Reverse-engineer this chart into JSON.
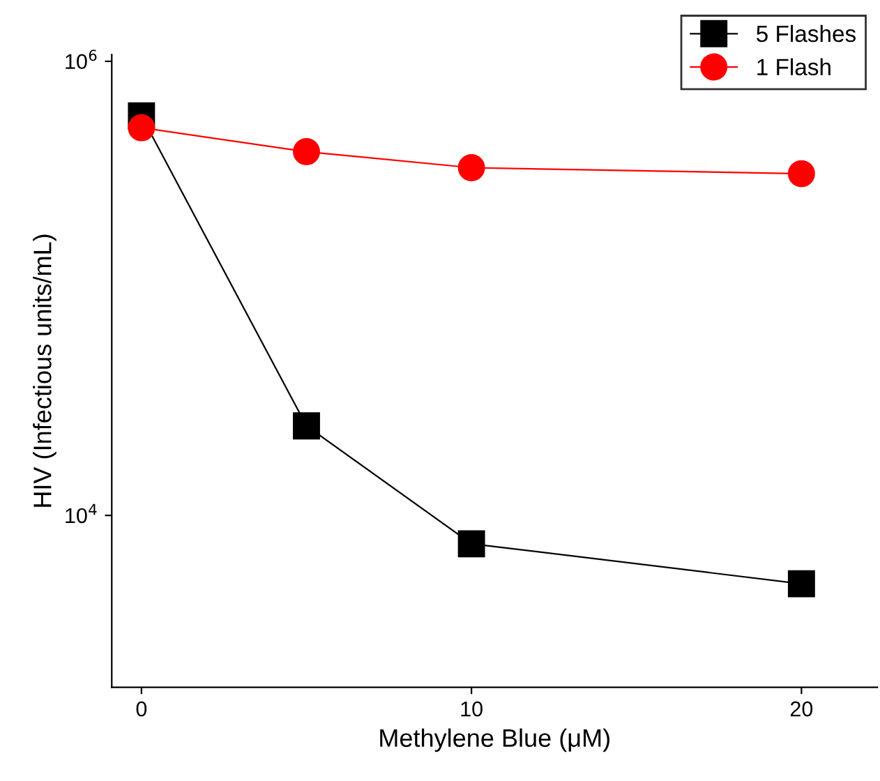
{
  "chart_data": {
    "type": "line",
    "xlabel": "Methylene Blue (μM)",
    "ylabel": "HIV (Infectious units/mL)",
    "log": "y",
    "x": [
      0,
      5,
      10,
      20
    ],
    "xlim": [
      -0.9,
      22.3
    ],
    "xticks": [
      0,
      10,
      20
    ],
    "ylim": [
      1750,
      1070000
    ],
    "yticks": [
      {
        "value": 10000,
        "label": "10$^{4}$"
      },
      {
        "value": 1000000,
        "label": "10$^{6}$"
      }
    ],
    "grid": false,
    "legend": "top right",
    "series": [
      {
        "name": "5 Flashes",
        "color": "#000000",
        "marker": "square",
        "values": [
          575000,
          24800,
          7500,
          5000
        ]
      },
      {
        "name": "1 Flash",
        "color": "#ff0000",
        "marker": "circle",
        "values": [
          510000,
          400000,
          340000,
          320000
        ]
      }
    ]
  }
}
